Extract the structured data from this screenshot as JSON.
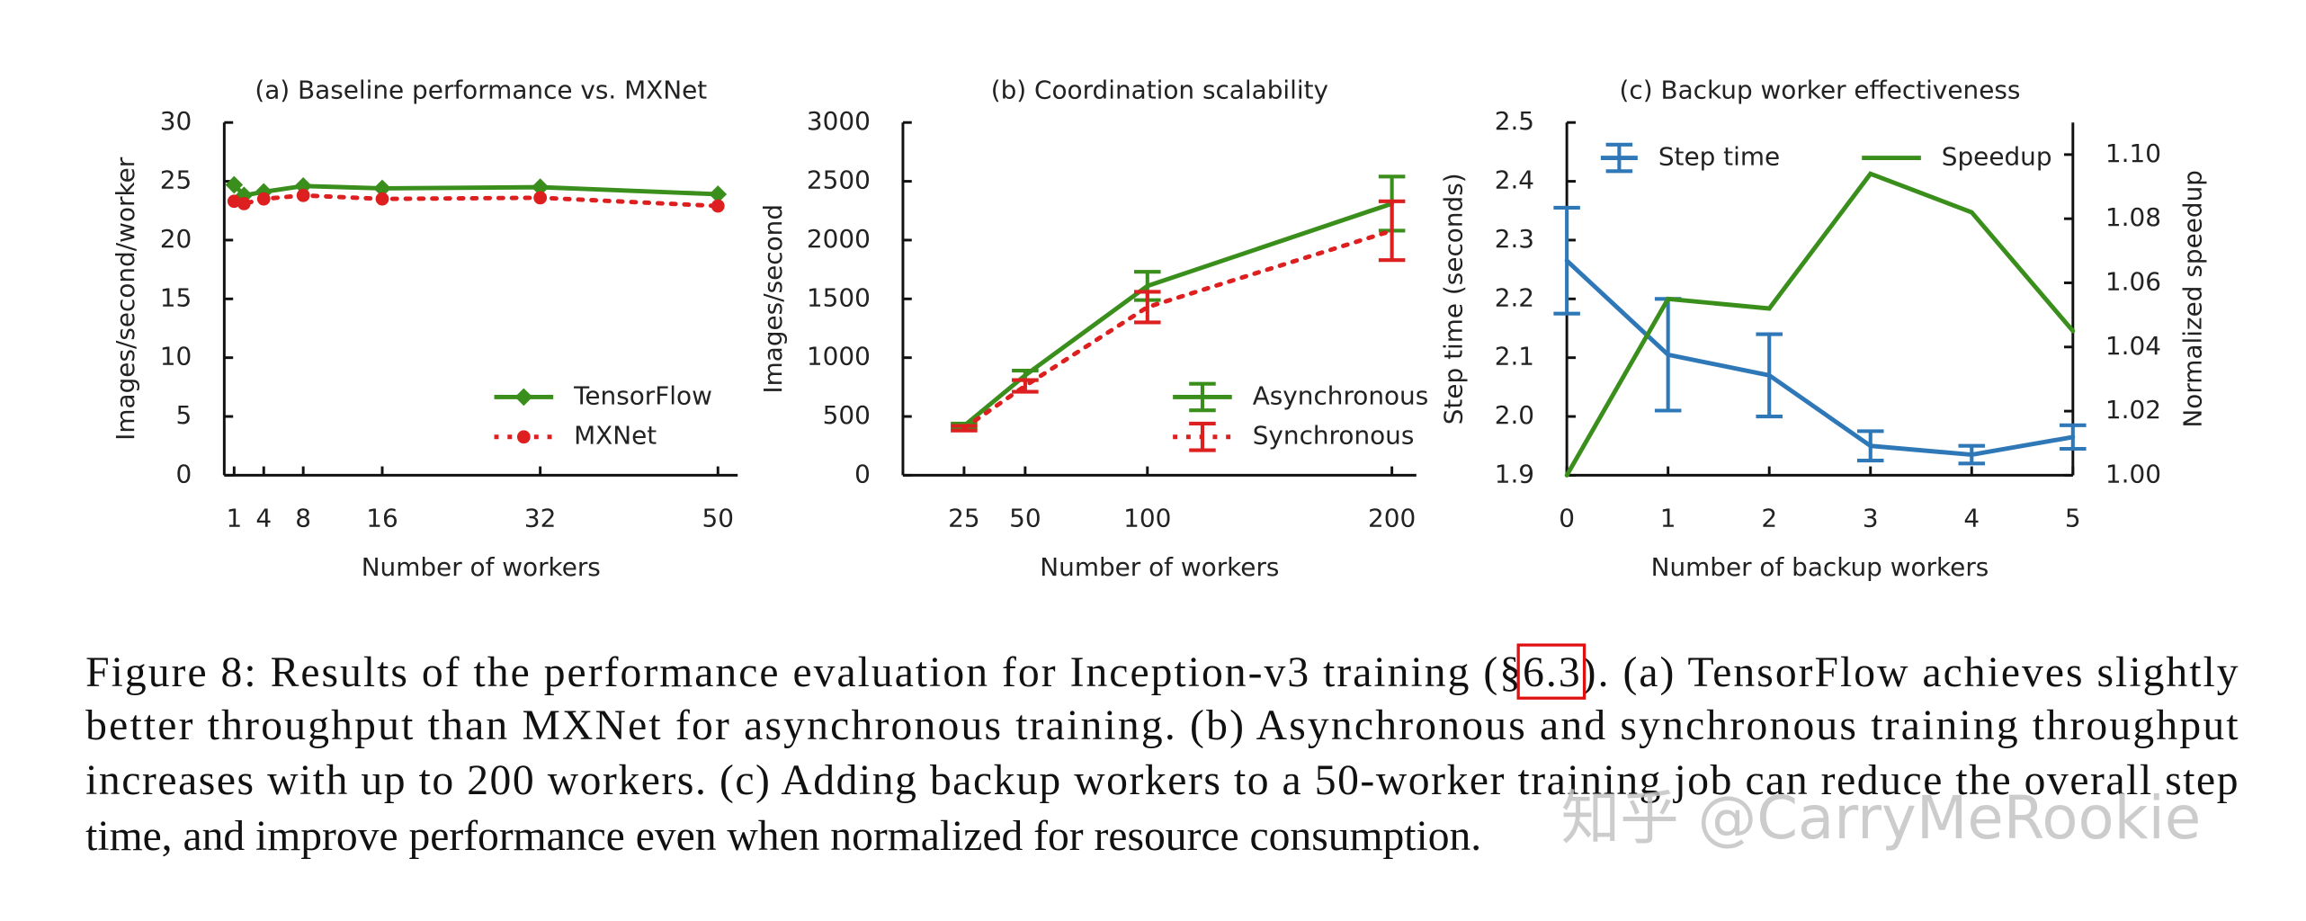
{
  "chart_data": [
    {
      "type": "line",
      "title": "(a) Baseline performance vs. MXNet",
      "xlabel": "Number of workers",
      "ylabel": "Images/second/worker",
      "x": [
        1,
        2,
        4,
        8,
        16,
        32,
        50
      ],
      "xlim": [
        0,
        52
      ],
      "xticks": [
        1,
        4,
        8,
        16,
        32,
        50
      ],
      "ylim": [
        0,
        30
      ],
      "yticks": [
        0,
        5,
        10,
        15,
        20,
        25,
        30
      ],
      "legend": "lower right",
      "series": [
        {
          "name": "TensorFlow",
          "color": "#3a8f1c",
          "marker": "diamond",
          "linestyle": "solid",
          "values": [
            24.7,
            23.8,
            24.1,
            24.6,
            24.4,
            24.5,
            23.9
          ]
        },
        {
          "name": "MXNet",
          "color": "#dd1f1f",
          "marker": "circle",
          "linestyle": "dotted",
          "values": [
            23.3,
            23.1,
            23.5,
            23.8,
            23.5,
            23.6,
            22.9
          ]
        }
      ]
    },
    {
      "type": "line",
      "title": "(b) Coordination scalability",
      "xlabel": "Number of workers",
      "ylabel": "Images/second",
      "x": [
        25,
        50,
        100,
        200
      ],
      "xlim": [
        0,
        210
      ],
      "xticks": [
        25,
        50,
        100,
        200
      ],
      "ylim": [
        0,
        3000
      ],
      "yticks": [
        0,
        500,
        1000,
        1500,
        2000,
        2500,
        3000
      ],
      "legend": "lower right",
      "series": [
        {
          "name": "Asynchronous",
          "color": "#3a8f1c",
          "linestyle": "solid",
          "values": [
            420,
            850,
            1610,
            2310
          ],
          "errors": [
            20,
            40,
            120,
            230
          ]
        },
        {
          "name": "Synchronous",
          "color": "#dd1f1f",
          "linestyle": "dotted",
          "values": [
            400,
            760,
            1430,
            2080
          ],
          "errors": [
            20,
            50,
            130,
            250
          ]
        }
      ]
    },
    {
      "type": "line",
      "title": "(c) Backup worker effectiveness",
      "xlabel": "Number of backup workers",
      "ylabel": "Step time (seconds)",
      "y2label": "Normalized speedup",
      "x": [
        0,
        1,
        2,
        3,
        4,
        5
      ],
      "xlim": [
        0,
        5
      ],
      "xticks": [
        0,
        1,
        2,
        3,
        4,
        5
      ],
      "ylim": [
        1.9,
        2.5
      ],
      "yticks": [
        {
          "value": 1.9,
          "label": "1.9"
        },
        {
          "value": 2.0,
          "label": "2.0"
        },
        {
          "value": 2.1,
          "label": "2.1"
        },
        {
          "value": 2.2,
          "label": "2.2"
        },
        {
          "value": 2.3,
          "label": "2.3"
        },
        {
          "value": 2.4,
          "label": "2.4"
        },
        {
          "value": 2.5,
          "label": "2.5"
        }
      ],
      "y2lim": [
        1.0,
        1.11
      ],
      "y2ticks": [
        {
          "value": 1.0,
          "label": "1.00"
        },
        {
          "value": 1.02,
          "label": "1.02"
        },
        {
          "value": 1.04,
          "label": "1.04"
        },
        {
          "value": 1.06,
          "label": "1.06"
        },
        {
          "value": 1.08,
          "label": "1.08"
        },
        {
          "value": 1.1,
          "label": "1.10"
        }
      ],
      "legend": "upper",
      "series": [
        {
          "name": "Step time",
          "color": "#2f78b8",
          "linestyle": "solid",
          "values": [
            2.265,
            2.105,
            2.07,
            1.95,
            1.935,
            1.965
          ],
          "errors": [
            0.09,
            0.095,
            0.07,
            0.025,
            0.015,
            0.02
          ]
        },
        {
          "name": "Speedup",
          "color": "#3a8f1c",
          "linestyle": "solid",
          "axis": "y2",
          "values": [
            1.0,
            1.055,
            1.052,
            1.094,
            1.082,
            1.045
          ]
        }
      ]
    }
  ],
  "caption": {
    "lines": [
      [
        "Figure 8: Results of the performance evaluation for Inception-v3 training (§",
        "6.3",
        ").  (a) TensorFlow achieves slightly"
      ],
      [
        "better throughput than MXNet for asynchronous training.  (b) Asynchronous and synchronous training throughput"
      ],
      [
        "increases with up to 200 workers. (c) Adding backup workers to a 50-worker training job can reduce the overall step"
      ],
      [
        "time, and improve performance even when normalized for resource consumption."
      ]
    ]
  },
  "watermark": "知乎 @CarryMeRookie"
}
